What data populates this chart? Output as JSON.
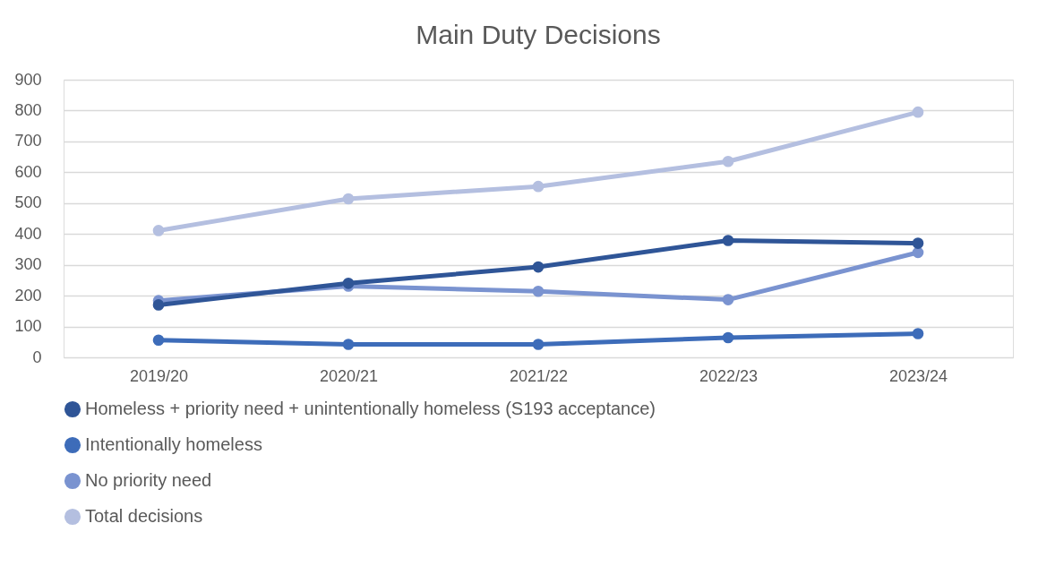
{
  "chart_data": {
    "type": "line",
    "title": "Main Duty Decisions",
    "categories": [
      "2019/20",
      "2020/21",
      "2021/22",
      "2022/23",
      "2023/24"
    ],
    "series": [
      {
        "name": "Homeless + priority need + unintentionally homeless (S193 acceptance)",
        "color": "#2f5597",
        "values": [
          170,
          240,
          293,
          379,
          370
        ]
      },
      {
        "name": "Intentionally homeless",
        "color": "#3d6cb9",
        "values": [
          56,
          42,
          42,
          64,
          77
        ]
      },
      {
        "name": "No priority need",
        "color": "#7a93d0",
        "values": [
          184,
          231,
          214,
          187,
          340
        ]
      },
      {
        "name": "Total decisions",
        "color": "#b4bfe0",
        "values": [
          411,
          514,
          554,
          635,
          795
        ]
      }
    ],
    "ylim": [
      0,
      900
    ],
    "yticks": [
      0,
      100,
      200,
      300,
      400,
      500,
      600,
      700,
      800,
      900
    ],
    "grid": "y",
    "legend": "bottom",
    "marker": "circle",
    "line_style": "solid"
  }
}
